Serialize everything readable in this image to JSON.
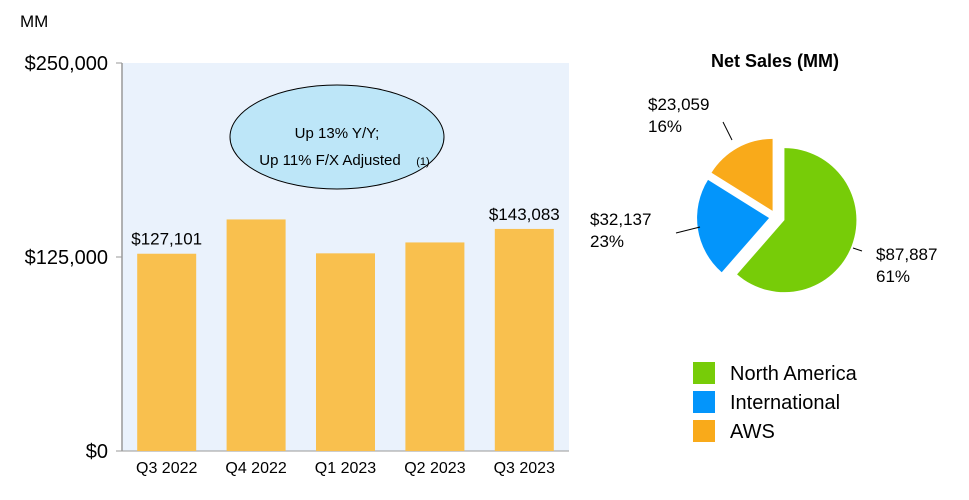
{
  "chart_data": [
    {
      "type": "bar",
      "unit_label": "MM",
      "categories": [
        "Q3 2022",
        "Q4 2022",
        "Q1 2023",
        "Q2 2023",
        "Q3 2023"
      ],
      "values": [
        127101,
        149204,
        127358,
        134383,
        143083
      ],
      "data_labels": [
        "$127,101",
        "",
        "",
        "",
        "$143,083"
      ],
      "yticks": [
        "$0",
        "$125,000",
        "$250,000"
      ],
      "ytick_values": [
        0,
        125000,
        250000
      ],
      "ylim": [
        0,
        250000
      ],
      "annotation": {
        "line1": "Up 13% Y/Y;",
        "line2": "Up 11% F/X Adjusted",
        "footnote": "(1)"
      },
      "bar_color": "#F9C04E",
      "plot_bg": "#EAF2FC",
      "callout_color": "#BDE6F8"
    },
    {
      "type": "pie",
      "title": "Net Sales (MM)",
      "slices": [
        {
          "name": "North America",
          "value": 87887,
          "label": "$87,887",
          "pct": "61%",
          "color": "#77CC08"
        },
        {
          "name": "International",
          "value": 32137,
          "label": "$32,137",
          "pct": "23%",
          "color": "#0395FB"
        },
        {
          "name": "AWS",
          "value": 23059,
          "label": "$23,059",
          "pct": "16%",
          "color": "#F9AA1A"
        }
      ]
    }
  ]
}
